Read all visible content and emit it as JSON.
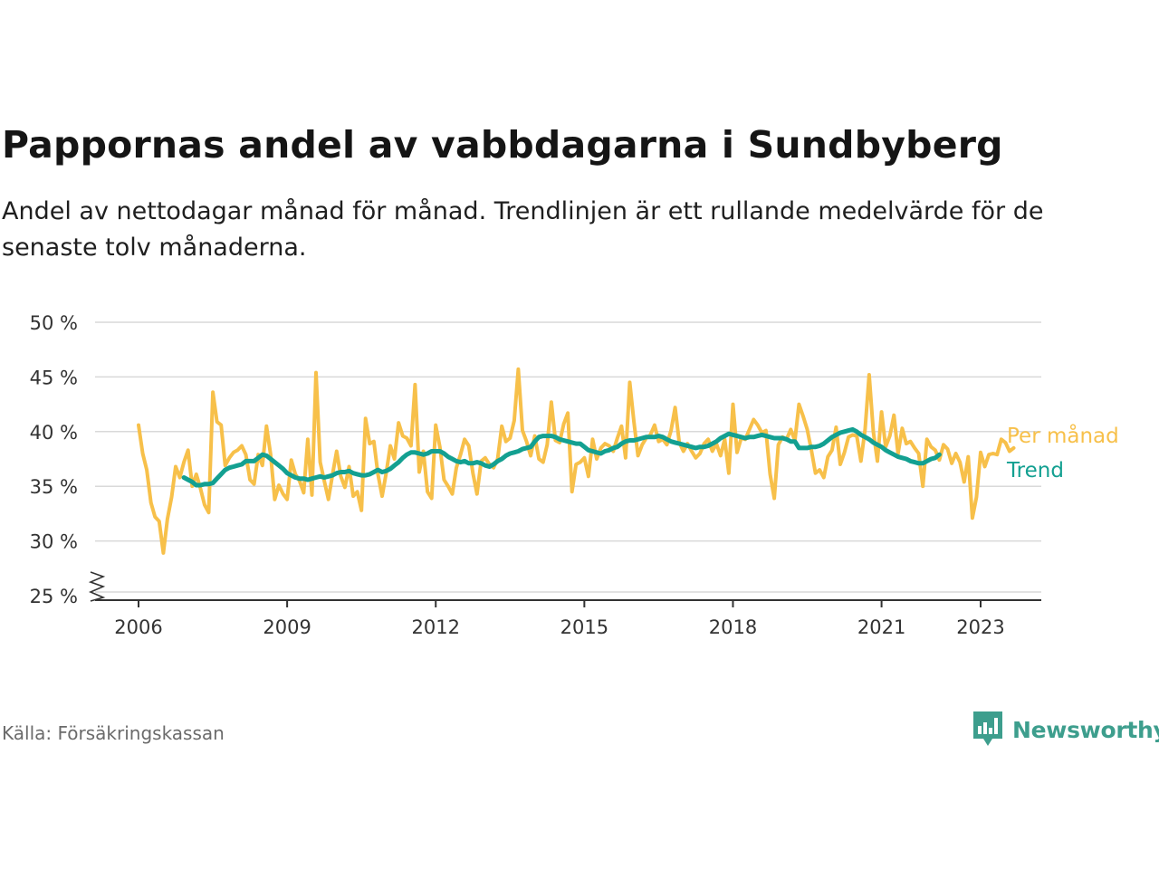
{
  "title": "Pappornas andel av vabbdagarna i Sundbyberg",
  "subtitle": "Andel av nettodagar månad för månad. Trendlinjen är ett rullande medelvärde för de senaste tolv månaderna.",
  "source": "Källa: Försäkringskassan",
  "brand": {
    "name": "Newsworthy",
    "icon": "newsworthy-logo-icon"
  },
  "colors": {
    "monthly": "#f7c04a",
    "trend": "#13a091",
    "grid": "#d9d9d9",
    "axis": "#333333"
  },
  "chart_data": {
    "type": "line",
    "title": "Pappornas andel av vabbdagarna i Sundbyberg",
    "xlabel": "",
    "ylabel": "",
    "x_ticks": [
      2006,
      2009,
      2012,
      2015,
      2018,
      2021,
      2023
    ],
    "y_ticks": [
      25,
      30,
      35,
      40,
      45,
      50
    ],
    "y_tick_labels": [
      "25 %",
      "30 %",
      "35 %",
      "40 %",
      "45 %",
      "50 %"
    ],
    "ylim": [
      25,
      50
    ],
    "y_axis_break": true,
    "grid": true,
    "legend": "inline labels at right end of lines",
    "series": [
      {
        "name": "Per månad",
        "color": "#f7c04a",
        "x_start": "2006-01",
        "step": "month",
        "values": [
          40.6,
          38.0,
          36.5,
          33.5,
          32.2,
          31.8,
          28.9,
          32.0,
          34.0,
          36.8,
          35.8,
          37.2,
          38.3,
          35.0,
          36.1,
          34.8,
          33.3,
          32.6,
          43.6,
          40.9,
          40.6,
          36.9,
          37.6,
          38.1,
          38.3,
          38.7,
          37.9,
          35.6,
          35.2,
          37.9,
          36.9,
          40.5,
          37.9,
          33.8,
          35.1,
          34.3,
          33.8,
          37.4,
          36.1,
          35.5,
          34.4,
          39.3,
          34.2,
          45.4,
          37.2,
          35.5,
          33.8,
          36.1,
          38.2,
          35.9,
          34.9,
          36.8,
          34.1,
          34.5,
          32.8,
          41.2,
          38.9,
          39.1,
          36.1,
          34.1,
          36.2,
          38.7,
          37.5,
          40.8,
          39.6,
          39.4,
          38.7,
          44.3,
          36.3,
          38.2,
          34.5,
          33.9,
          40.6,
          38.6,
          35.6,
          35.0,
          34.3,
          36.7,
          37.9,
          39.3,
          38.7,
          36.2,
          34.3,
          37.3,
          37.6,
          37.0,
          36.7,
          37.5,
          40.5,
          39.1,
          39.4,
          41.0,
          45.7,
          40.1,
          39.1,
          37.8,
          39.6,
          37.5,
          37.2,
          38.8,
          42.7,
          39.2,
          39.0,
          40.7,
          41.7,
          34.5,
          37.0,
          37.2,
          37.6,
          35.9,
          39.3,
          37.5,
          38.5,
          38.9,
          38.7,
          38.2,
          39.4,
          40.5,
          37.6,
          44.5,
          40.9,
          37.8,
          38.8,
          39.4,
          39.7,
          40.6,
          39.1,
          39.3,
          38.8,
          40.1,
          42.2,
          39.0,
          38.2,
          38.9,
          38.2,
          37.6,
          38.0,
          38.9,
          39.3,
          38.2,
          38.9,
          37.8,
          39.3,
          36.2,
          42.5,
          38.1,
          39.4,
          39.3,
          40.2,
          41.1,
          40.6,
          39.9,
          40.1,
          36.1,
          33.9,
          38.8,
          39.5,
          39.3,
          40.2,
          39.2,
          42.5,
          41.4,
          40.2,
          38.3,
          36.2,
          36.5,
          35.8,
          37.7,
          38.3,
          40.4,
          37.0,
          38.1,
          39.5,
          39.7,
          39.6,
          37.3,
          40.2,
          45.2,
          40.0,
          37.3,
          41.8,
          38.6,
          39.6,
          41.5,
          38.0,
          40.3,
          38.9,
          39.1,
          38.5,
          38.0,
          35.0,
          39.3,
          38.6,
          38.3,
          37.4,
          38.8,
          38.4,
          37.1,
          38.0,
          37.2,
          35.4,
          37.7,
          32.1,
          34.0,
          38.1,
          36.8,
          37.9,
          38.0,
          37.9,
          39.3,
          39.0,
          38.2,
          38.5
        ]
      },
      {
        "name": "Trend",
        "color": "#13a091",
        "x_start": "2006-12",
        "step": "month",
        "values": [
          35.8,
          35.6,
          35.4,
          35.1,
          35.1,
          35.2,
          35.2,
          35.3,
          35.7,
          36.1,
          36.5,
          36.7,
          36.8,
          36.9,
          37.0,
          37.3,
          37.3,
          37.3,
          37.6,
          37.9,
          37.8,
          37.5,
          37.2,
          36.9,
          36.6,
          36.2,
          36.0,
          35.8,
          35.7,
          35.7,
          35.6,
          35.7,
          35.8,
          35.9,
          35.8,
          35.9,
          36.0,
          36.2,
          36.3,
          36.3,
          36.4,
          36.2,
          36.1,
          36.0,
          36.0,
          36.1,
          36.3,
          36.5,
          36.3,
          36.4,
          36.6,
          36.9,
          37.2,
          37.6,
          37.9,
          38.1,
          38.1,
          38.0,
          37.9,
          38.0,
          38.2,
          38.2,
          38.2,
          38.0,
          37.7,
          37.5,
          37.3,
          37.2,
          37.3,
          37.1,
          37.1,
          37.2,
          37.1,
          36.9,
          36.8,
          37.0,
          37.3,
          37.5,
          37.8,
          38.0,
          38.1,
          38.2,
          38.4,
          38.5,
          38.6,
          39.1,
          39.5,
          39.6,
          39.6,
          39.6,
          39.5,
          39.3,
          39.2,
          39.1,
          39.0,
          38.9,
          38.9,
          38.6,
          38.3,
          38.2,
          38.1,
          38.0,
          38.2,
          38.3,
          38.5,
          38.6,
          38.9,
          39.1,
          39.2,
          39.2,
          39.3,
          39.4,
          39.5,
          39.5,
          39.5,
          39.6,
          39.5,
          39.3,
          39.1,
          39.0,
          38.9,
          38.8,
          38.7,
          38.6,
          38.5,
          38.6,
          38.6,
          38.7,
          38.9,
          39.1,
          39.4,
          39.6,
          39.8,
          39.7,
          39.6,
          39.5,
          39.4,
          39.5,
          39.5,
          39.6,
          39.7,
          39.6,
          39.5,
          39.4,
          39.4,
          39.4,
          39.3,
          39.1,
          39.1,
          38.5,
          38.5,
          38.5,
          38.6,
          38.6,
          38.7,
          38.9,
          39.2,
          39.5,
          39.7,
          39.9,
          40.0,
          40.1,
          40.2,
          40.0,
          39.7,
          39.5,
          39.3,
          39.0,
          38.8,
          38.6,
          38.3,
          38.1,
          37.9,
          37.7,
          37.6,
          37.5,
          37.3,
          37.2,
          37.1,
          37.1,
          37.3,
          37.5,
          37.6,
          37.9
        ]
      }
    ]
  }
}
